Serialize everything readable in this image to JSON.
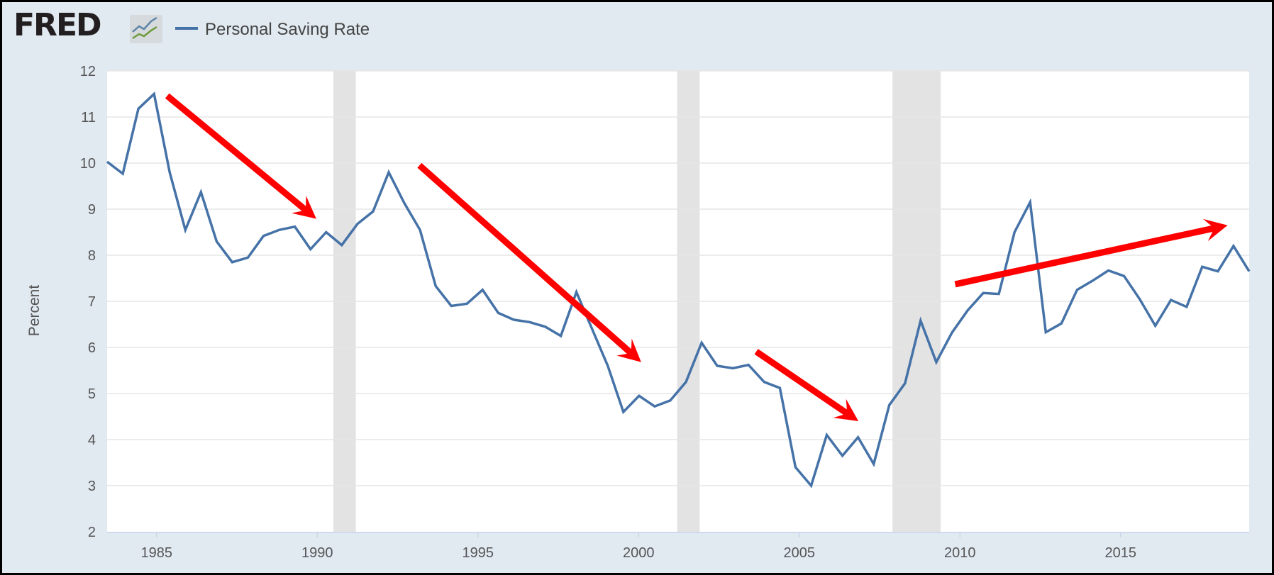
{
  "header": {
    "logo_text": "FRED",
    "legend_label": "Personal Saving Rate"
  },
  "colors": {
    "series": "#4572a7",
    "arrow": "#ff0000",
    "recession": "#e3e3e3",
    "background": "#e1e9f1",
    "grid": "#e6e6e6"
  },
  "chart_data": {
    "type": "line",
    "title": "Personal Saving Rate",
    "xlabel": "",
    "ylabel": "Percent",
    "ylim": [
      2,
      12
    ],
    "xlim": [
      1983.46,
      2019.0
    ],
    "grid": true,
    "legend_placement": "top-left",
    "yticks": [
      2,
      3,
      4,
      5,
      6,
      7,
      8,
      9,
      10,
      11,
      12
    ],
    "xticks": [
      1985,
      1990,
      1995,
      2000,
      2005,
      2010,
      2015
    ],
    "series": [
      {
        "name": "Personal Saving Rate",
        "x_start": 1983.46,
        "x_end": 2019.0,
        "values": [
          10.03,
          9.77,
          11.18,
          11.5,
          9.8,
          8.55,
          9.37,
          8.3,
          7.85,
          7.95,
          8.42,
          8.55,
          8.62,
          8.13,
          8.5,
          8.22,
          8.68,
          8.95,
          9.8,
          9.13,
          8.55,
          7.33,
          6.9,
          6.95,
          7.25,
          6.75,
          6.6,
          6.55,
          6.45,
          6.25,
          7.2,
          6.4,
          5.6,
          4.6,
          4.95,
          4.72,
          4.85,
          5.25,
          6.1,
          5.6,
          5.55,
          5.62,
          5.25,
          5.12,
          3.4,
          3.0,
          4.1,
          3.65,
          4.05,
          3.47,
          4.75,
          5.22,
          6.58,
          5.68,
          6.32,
          6.8,
          7.18,
          7.16,
          8.5,
          9.15,
          6.33,
          6.52,
          7.25,
          7.45,
          7.67,
          7.55,
          7.05,
          6.47,
          7.03,
          6.88,
          7.75,
          7.65,
          8.2,
          7.65
        ]
      }
    ],
    "recessions": [
      [
        1990.5,
        1991.2
      ],
      [
        2001.2,
        2001.9
      ],
      [
        2007.9,
        2009.4
      ]
    ],
    "annotations": [
      {
        "type": "arrow",
        "from": [
          1985.33,
          11.46
        ],
        "to": [
          1989.97,
          8.79
        ]
      },
      {
        "type": "arrow",
        "from": [
          1993.18,
          9.95
        ],
        "to": [
          2000.08,
          5.68
        ]
      },
      {
        "type": "arrow",
        "from": [
          2003.66,
          5.91
        ],
        "to": [
          2006.84,
          4.4
        ]
      },
      {
        "type": "arrow",
        "from": [
          2009.85,
          7.37
        ],
        "to": [
          2018.33,
          8.65
        ]
      }
    ]
  }
}
